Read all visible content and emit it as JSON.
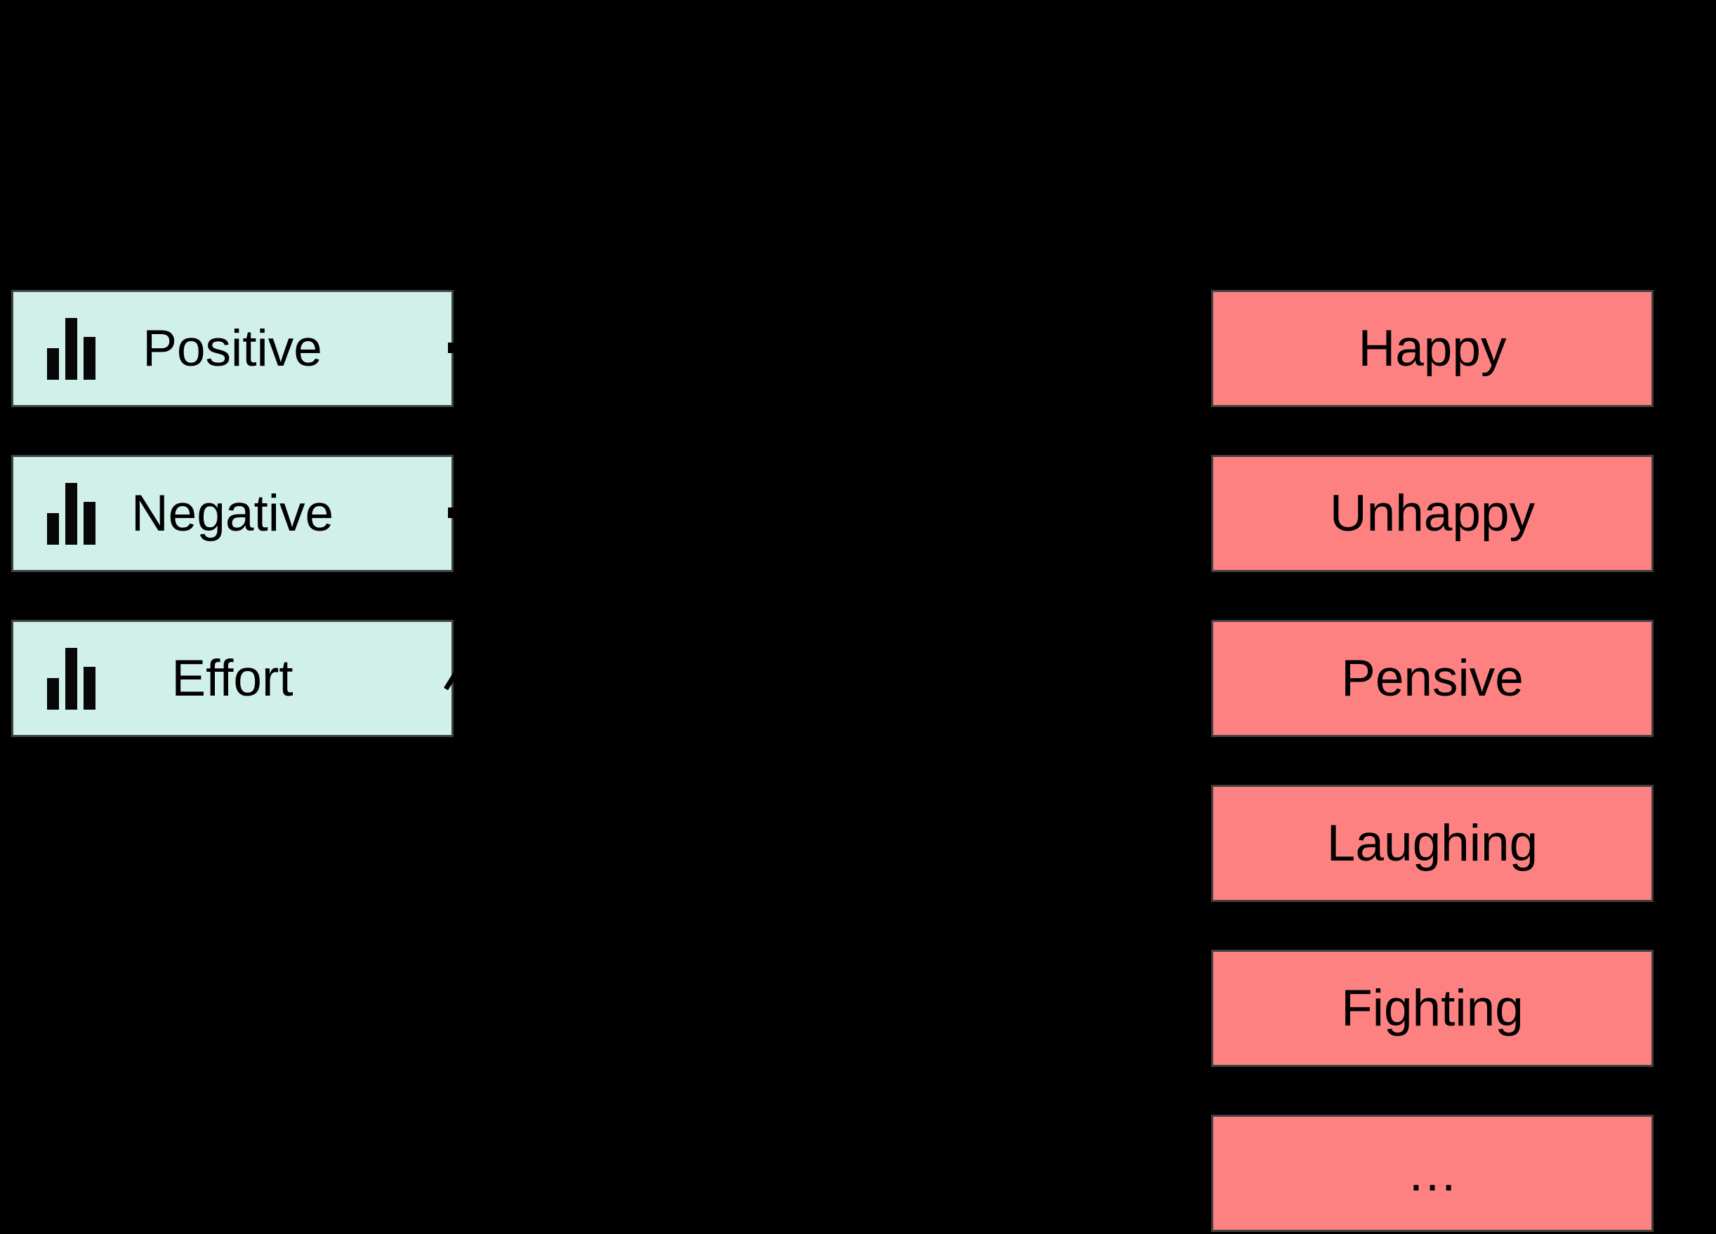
{
  "diagram": {
    "background_color": "#000000",
    "left_column": {
      "fill_color": "#d1f0e9",
      "border_color": "#3e4444",
      "icon": "bar-chart-icon",
      "items": [
        {
          "label": "Positive"
        },
        {
          "label": "Negative"
        },
        {
          "label": "Effort"
        }
      ]
    },
    "right_column": {
      "fill_color": "#fd8181",
      "border_color": "#414141",
      "items": [
        {
          "label": "Happy"
        },
        {
          "label": "Unhappy"
        },
        {
          "label": "Pensive"
        },
        {
          "label": "Laughing"
        },
        {
          "label": "Fighting"
        },
        {
          "label": "…"
        }
      ]
    },
    "connector_color": "#000000"
  }
}
